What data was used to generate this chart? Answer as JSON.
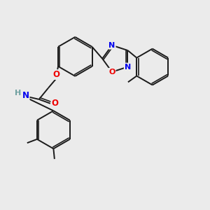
{
  "background_color": "#ebebeb",
  "bond_color": "#1a1a1a",
  "atom_colors": {
    "N": "#0000ee",
    "O": "#ee0000",
    "H": "#6fa0a0",
    "C": "#1a1a1a"
  },
  "lw": 1.4,
  "lw_dbl": 1.1
}
